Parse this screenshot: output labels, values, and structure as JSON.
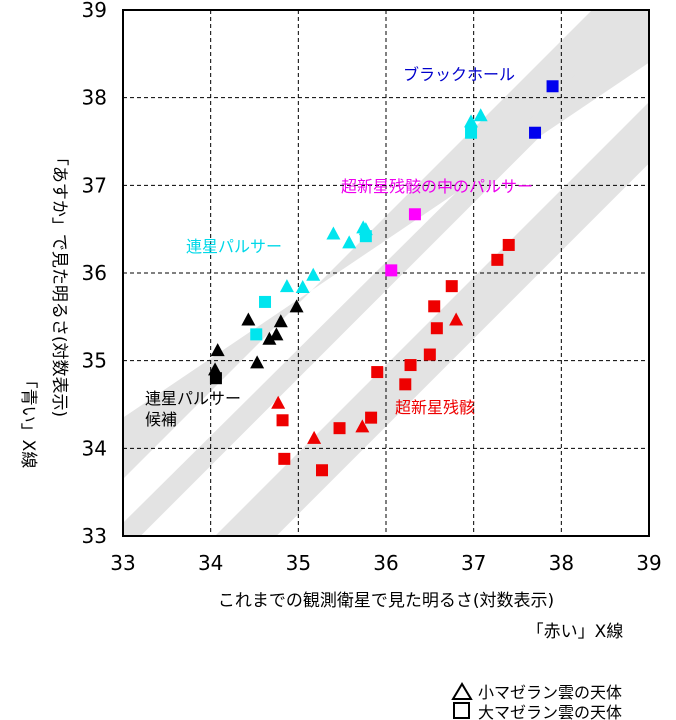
{
  "chart_data": {
    "type": "scatter",
    "xlim": [
      33,
      39
    ],
    "ylim": [
      33,
      39
    ],
    "x_ticks": [
      "33",
      "34",
      "35",
      "36",
      "37",
      "38",
      "39"
    ],
    "y_ticks": [
      "33",
      "34",
      "35",
      "36",
      "37",
      "38",
      "39"
    ],
    "grid": true,
    "xlabel": "これまでの観測衛星で見た明るさ(対数表示)",
    "xlabel_sub": "「赤い」X線",
    "ylabel": "「あすか」で見た明るさ(対数表示)",
    "ylabel_sub": "「青い」X線",
    "bands": [
      {
        "points": [
          [
            33,
            34.35
          ],
          [
            33,
            33.65
          ],
          [
            38.35,
            39
          ],
          [
            39,
            39
          ],
          [
            39,
            38.4
          ]
        ]
      },
      {
        "points": [
          [
            33,
            33.15
          ],
          [
            33,
            33
          ],
          [
            33.2,
            33
          ],
          [
            39,
            38.8
          ],
          [
            39,
            39
          ],
          [
            38.9,
            39
          ]
        ]
      },
      {
        "points": [
          [
            34.05,
            33
          ],
          [
            34.75,
            33
          ],
          [
            39,
            37.25
          ],
          [
            39,
            37.95
          ]
        ]
      }
    ],
    "series": [
      {
        "name": "連星パルサー",
        "color": "#00e5ee",
        "label_color": "#00d8e8",
        "triangles": [
          [
            34.87,
            35.85
          ],
          [
            35.05,
            35.84
          ],
          [
            35.17,
            35.98
          ],
          [
            35.4,
            36.45
          ],
          [
            35.58,
            36.35
          ],
          [
            35.74,
            36.52
          ],
          [
            35.77,
            36.5
          ],
          [
            36.97,
            37.73
          ],
          [
            37.08,
            37.8
          ]
        ],
        "squares": [
          [
            34.52,
            35.3
          ],
          [
            34.62,
            35.67
          ],
          [
            35.77,
            36.42
          ],
          [
            36.97,
            37.6
          ]
        ]
      },
      {
        "name": "連星パルサー候補",
        "color": "#000000",
        "label_color": "#000000",
        "triangles": [
          [
            34.05,
            34.9
          ],
          [
            34.08,
            35.12
          ],
          [
            34.43,
            35.47
          ],
          [
            34.53,
            34.98
          ],
          [
            34.67,
            35.25
          ],
          [
            34.75,
            35.3
          ],
          [
            34.8,
            35.45
          ],
          [
            34.98,
            35.62
          ]
        ],
        "squares": [
          [
            34.06,
            34.8
          ]
        ]
      },
      {
        "name": "超新星残骸",
        "color": "#ee0000",
        "label_color": "#ee0000",
        "triangles": [
          [
            34.77,
            34.52
          ],
          [
            35.18,
            34.12
          ],
          [
            35.73,
            34.25
          ],
          [
            36.8,
            35.47
          ]
        ],
        "squares": [
          [
            34.82,
            34.32
          ],
          [
            34.84,
            33.88
          ],
          [
            35.27,
            33.75
          ],
          [
            35.47,
            34.23
          ],
          [
            35.83,
            34.35
          ],
          [
            35.9,
            34.87
          ],
          [
            36.22,
            34.73
          ],
          [
            36.28,
            34.95
          ],
          [
            36.5,
            35.07
          ],
          [
            36.55,
            35.62
          ],
          [
            36.58,
            35.37
          ],
          [
            36.75,
            35.85
          ],
          [
            37.27,
            36.15
          ],
          [
            37.4,
            36.32
          ]
        ]
      },
      {
        "name": "超新星残骸の中のパルサー",
        "color": "#ff00ff",
        "label_color": "#ee00ee",
        "triangles": [],
        "squares": [
          [
            36.06,
            36.03
          ],
          [
            36.33,
            36.67
          ]
        ]
      },
      {
        "name": "ブラックホール",
        "color": "#0000ee",
        "label_color": "#0000cc",
        "triangles": [],
        "squares": [
          [
            37.7,
            37.6
          ],
          [
            37.9,
            38.13
          ]
        ]
      }
    ],
    "annotations": [
      {
        "key": "bh",
        "text": "ブラックホール"
      },
      {
        "key": "snr_psr",
        "text": "超新星残骸の中のパルサー"
      },
      {
        "key": "bin_psr",
        "text": "連星パルサー"
      },
      {
        "key": "cand_1",
        "text": "連星パルサー"
      },
      {
        "key": "cand_2",
        "text": "候補"
      },
      {
        "key": "snr",
        "text": "超新星残骸"
      }
    ],
    "legend": {
      "placement": "bottom-right",
      "entries": [
        {
          "marker": "triangle",
          "label": "小マゼラン雲の天体"
        },
        {
          "marker": "square",
          "label": "大マゼラン雲の天体"
        }
      ]
    }
  }
}
